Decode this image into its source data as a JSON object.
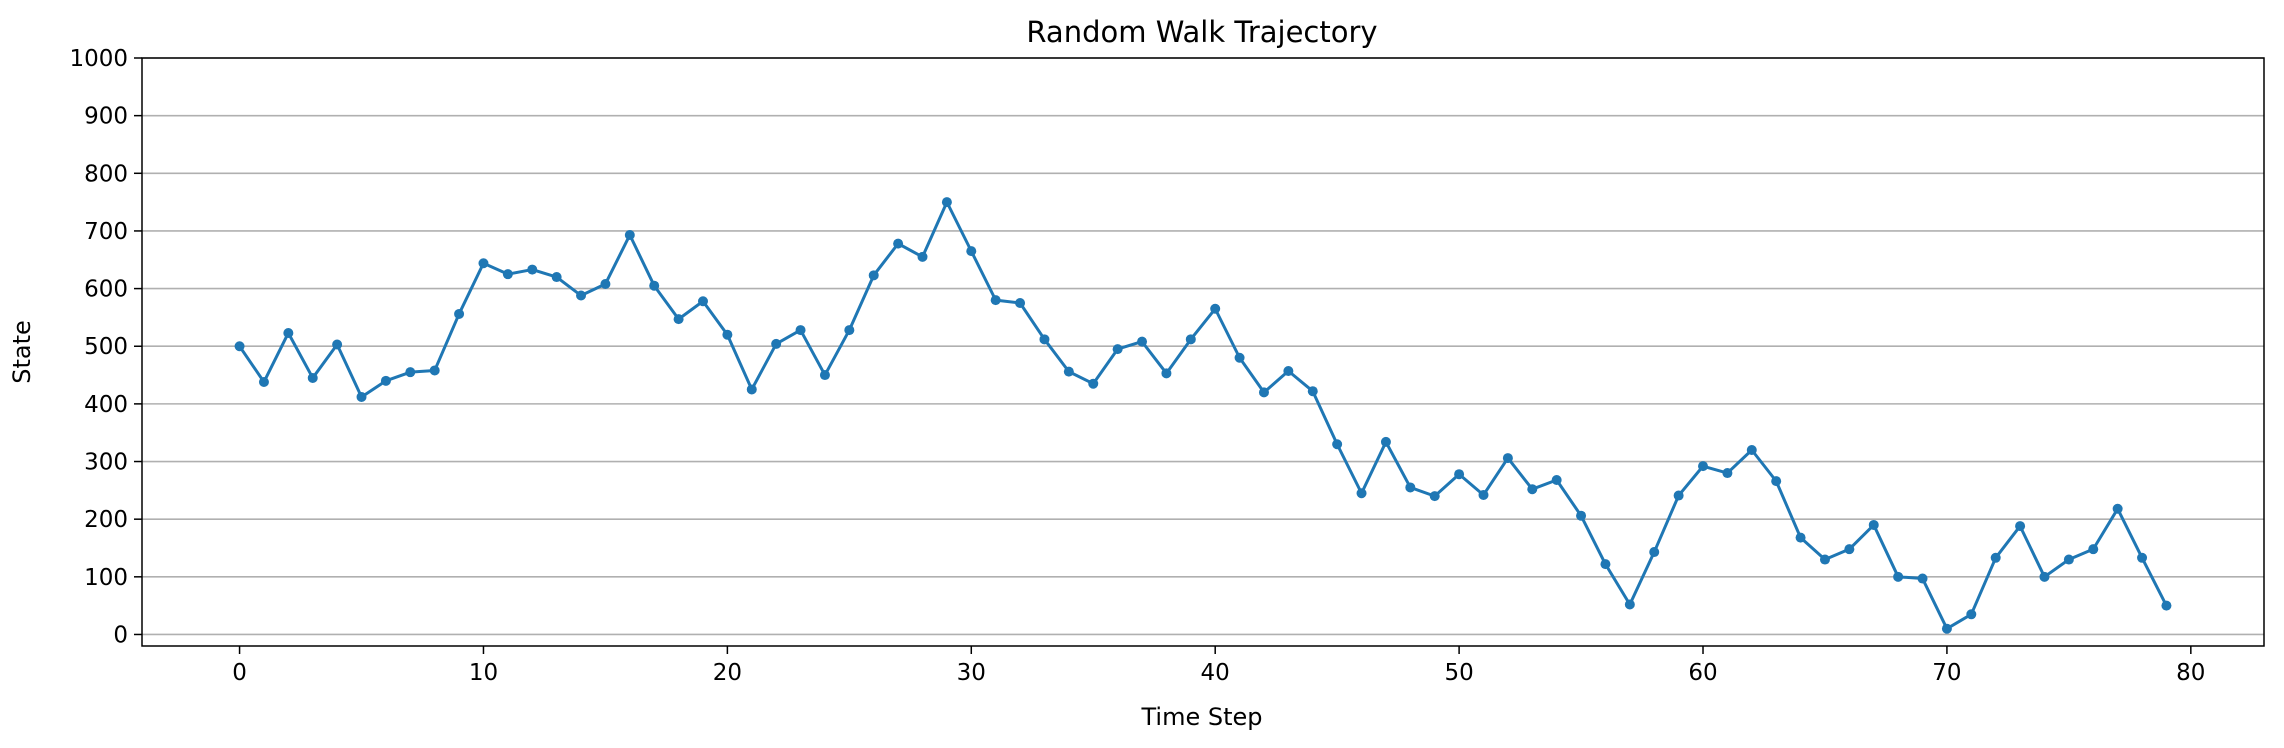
{
  "chart_data": {
    "type": "line",
    "title": "Random Walk Trajectory",
    "xlabel": "Time Step",
    "ylabel": "State",
    "xlim": [
      -4,
      83
    ],
    "ylim": [
      -20,
      1000
    ],
    "xticks": [
      0,
      10,
      20,
      30,
      40,
      50,
      60,
      70,
      80
    ],
    "yticks": [
      0,
      100,
      200,
      300,
      400,
      500,
      600,
      700,
      800,
      900,
      1000
    ],
    "grid": "horizontal",
    "line_color": "#1f77b4",
    "x": [
      0,
      1,
      2,
      3,
      4,
      5,
      6,
      7,
      8,
      9,
      10,
      11,
      12,
      13,
      14,
      15,
      16,
      17,
      18,
      19,
      20,
      21,
      22,
      23,
      24,
      25,
      26,
      27,
      28,
      29,
      30,
      31,
      32,
      33,
      34,
      35,
      36,
      37,
      38,
      39,
      40,
      41,
      42,
      43,
      44,
      45,
      46,
      47,
      48,
      49,
      50,
      51,
      52,
      53,
      54,
      55,
      56,
      57,
      58,
      59,
      60,
      61,
      62,
      63,
      64,
      65,
      66,
      67,
      68,
      69,
      70,
      71,
      72,
      73,
      74,
      75,
      76,
      77,
      78,
      79
    ],
    "values": [
      500,
      438,
      523,
      445,
      503,
      412,
      440,
      455,
      458,
      556,
      644,
      625,
      633,
      620,
      588,
      608,
      693,
      605,
      547,
      578,
      520,
      425,
      504,
      528,
      450,
      528,
      623,
      678,
      655,
      750,
      665,
      580,
      575,
      512,
      456,
      435,
      495,
      508,
      453,
      512,
      565,
      480,
      420,
      457,
      422,
      330,
      245,
      334,
      255,
      240,
      278,
      242,
      306,
      252,
      268,
      206,
      122,
      52,
      143,
      241,
      292,
      280,
      320,
      266,
      168,
      130,
      148,
      190,
      100,
      97,
      10,
      35,
      133,
      188,
      100,
      130,
      148,
      218,
      133,
      50
    ]
  }
}
